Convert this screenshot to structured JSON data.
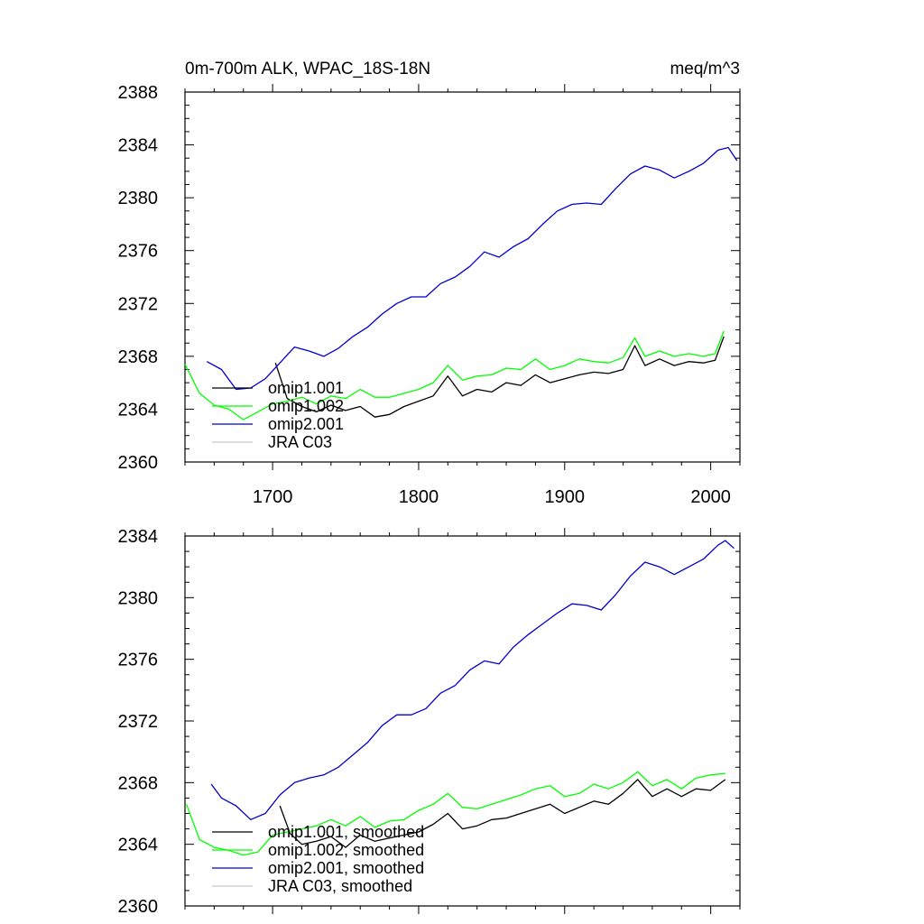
{
  "chart_data": [
    {
      "type": "line",
      "title": "0m-700m ALK, WPAC_18S-18N",
      "units": "meq/m^3",
      "xlabel": "",
      "ylabel": "",
      "xlim": [
        1640,
        2020
      ],
      "ylim": [
        2360,
        2388
      ],
      "x_ticks": [
        1700,
        1800,
        1900,
        2000
      ],
      "x_tick_labels": [
        "1700",
        "1800",
        "1900",
        "2000"
      ],
      "y_ticks": [
        2360,
        2364,
        2368,
        2372,
        2376,
        2380,
        2384,
        2388
      ],
      "y_tick_labels": [
        "2360",
        "2364",
        "2368",
        "2372",
        "2376",
        "2380",
        "2384",
        "2388"
      ],
      "legend_position": "bottom-left",
      "series": [
        {
          "name": "omip1.001",
          "color": "#000000",
          "x": [
            1702,
            1710,
            1720,
            1730,
            1740,
            1750,
            1760,
            1770,
            1780,
            1790,
            1800,
            1810,
            1820,
            1830,
            1840,
            1850,
            1860,
            1870,
            1880,
            1890,
            1900,
            1910,
            1920,
            1930,
            1940,
            1948,
            1955,
            1965,
            1975,
            1985,
            1995,
            2003,
            2009
          ],
          "values": [
            2367.5,
            2364.8,
            2364.2,
            2363.8,
            2364.3,
            2363.9,
            2364.2,
            2363.4,
            2363.6,
            2364.2,
            2364.6,
            2365.0,
            2366.5,
            2365.0,
            2365.5,
            2365.3,
            2366.0,
            2365.8,
            2366.6,
            2366.0,
            2366.3,
            2366.6,
            2366.8,
            2366.7,
            2367.0,
            2368.8,
            2367.3,
            2367.8,
            2367.3,
            2367.6,
            2367.5,
            2367.7,
            2369.5
          ]
        },
        {
          "name": "omip1.002",
          "color": "#00ff00",
          "x": [
            1640,
            1650,
            1660,
            1670,
            1680,
            1690,
            1700,
            1710,
            1720,
            1730,
            1740,
            1750,
            1760,
            1770,
            1780,
            1790,
            1800,
            1810,
            1820,
            1830,
            1840,
            1850,
            1860,
            1870,
            1880,
            1890,
            1900,
            1910,
            1920,
            1930,
            1940,
            1948,
            1955,
            1965,
            1975,
            1985,
            1995,
            2003,
            2009
          ],
          "values": [
            2367.4,
            2365.2,
            2364.3,
            2364.0,
            2363.2,
            2363.8,
            2364.4,
            2364.6,
            2364.9,
            2364.4,
            2365.0,
            2364.8,
            2365.5,
            2364.9,
            2364.9,
            2365.2,
            2365.5,
            2366.0,
            2367.3,
            2366.2,
            2366.5,
            2366.6,
            2367.1,
            2367.0,
            2367.8,
            2367.0,
            2367.3,
            2367.8,
            2367.6,
            2367.5,
            2367.9,
            2369.4,
            2368.0,
            2368.4,
            2368.0,
            2368.2,
            2368.0,
            2368.2,
            2369.9
          ]
        },
        {
          "name": "omip2.001",
          "color": "#0000cc",
          "x": [
            1655,
            1665,
            1675,
            1685,
            1695,
            1705,
            1715,
            1725,
            1735,
            1745,
            1755,
            1765,
            1775,
            1785,
            1795,
            1805,
            1815,
            1825,
            1835,
            1845,
            1855,
            1865,
            1875,
            1885,
            1895,
            1905,
            1915,
            1925,
            1935,
            1945,
            1955,
            1965,
            1975,
            1985,
            1995,
            2005,
            2012,
            2018
          ],
          "values": [
            2367.6,
            2367.0,
            2365.5,
            2365.6,
            2366.3,
            2367.5,
            2368.7,
            2368.4,
            2368.0,
            2368.6,
            2369.5,
            2370.2,
            2371.2,
            2372.0,
            2372.5,
            2372.5,
            2373.5,
            2374.0,
            2374.8,
            2375.9,
            2375.5,
            2376.3,
            2376.9,
            2378.0,
            2379.0,
            2379.5,
            2379.6,
            2379.5,
            2380.7,
            2381.8,
            2382.4,
            2382.1,
            2381.5,
            2382.0,
            2382.6,
            2383.6,
            2383.8,
            2382.8
          ]
        },
        {
          "name": "JRA C03",
          "color": "#c8c8c8",
          "x": [],
          "values": []
        }
      ]
    },
    {
      "type": "line",
      "title": "",
      "xlabel": "",
      "ylabel": "",
      "xlim": [
        1640,
        2020
      ],
      "ylim": [
        2360,
        2384
      ],
      "x_ticks": [
        1700,
        1800,
        1900,
        2000
      ],
      "y_ticks": [
        2360,
        2364,
        2368,
        2372,
        2376,
        2380,
        2384
      ],
      "y_tick_labels": [
        "2360",
        "2364",
        "2368",
        "2372",
        "2376",
        "2380",
        "2384"
      ],
      "legend_position": "bottom-left",
      "series": [
        {
          "name": "omip1.001, smoothed",
          "color": "#000000",
          "x": [
            1705,
            1712,
            1720,
            1730,
            1740,
            1750,
            1760,
            1770,
            1780,
            1790,
            1800,
            1810,
            1820,
            1830,
            1840,
            1850,
            1860,
            1870,
            1880,
            1890,
            1900,
            1910,
            1920,
            1930,
            1940,
            1950,
            1960,
            1970,
            1980,
            1990,
            2000,
            2010
          ],
          "values": [
            2366.5,
            2364.7,
            2364.0,
            2364.2,
            2364.5,
            2363.8,
            2364.6,
            2364.2,
            2364.4,
            2364.6,
            2364.8,
            2365.3,
            2366.0,
            2365.0,
            2365.2,
            2365.6,
            2365.7,
            2366.0,
            2366.3,
            2366.6,
            2366.0,
            2366.4,
            2366.8,
            2366.6,
            2367.3,
            2368.2,
            2367.1,
            2367.6,
            2367.1,
            2367.6,
            2367.5,
            2368.2
          ]
        },
        {
          "name": "omip1.002, smoothed",
          "color": "#00ff00",
          "x": [
            1641,
            1650,
            1660,
            1670,
            1680,
            1690,
            1700,
            1710,
            1720,
            1730,
            1740,
            1750,
            1760,
            1770,
            1780,
            1790,
            1800,
            1810,
            1820,
            1830,
            1840,
            1850,
            1860,
            1870,
            1880,
            1890,
            1900,
            1910,
            1920,
            1930,
            1940,
            1950,
            1960,
            1970,
            1980,
            1990,
            2000,
            2010
          ],
          "values": [
            2366.6,
            2364.3,
            2363.8,
            2363.6,
            2363.3,
            2363.5,
            2364.6,
            2364.8,
            2365.0,
            2365.2,
            2365.6,
            2365.2,
            2365.8,
            2365.1,
            2365.5,
            2365.6,
            2366.2,
            2366.6,
            2367.3,
            2366.4,
            2366.3,
            2366.6,
            2366.9,
            2367.2,
            2367.6,
            2367.8,
            2367.1,
            2367.3,
            2367.9,
            2367.6,
            2368.0,
            2368.7,
            2367.8,
            2368.2,
            2367.6,
            2368.3,
            2368.5,
            2368.6
          ]
        },
        {
          "name": "omip2.001, smoothed",
          "color": "#0000cc",
          "x": [
            1658,
            1665,
            1675,
            1685,
            1695,
            1705,
            1715,
            1725,
            1735,
            1745,
            1755,
            1765,
            1775,
            1785,
            1795,
            1805,
            1815,
            1825,
            1835,
            1845,
            1855,
            1865,
            1875,
            1885,
            1895,
            1905,
            1915,
            1925,
            1935,
            1945,
            1955,
            1965,
            1975,
            1985,
            1995,
            2005,
            2010,
            2016
          ],
          "values": [
            2367.9,
            2367.0,
            2366.5,
            2365.6,
            2366.0,
            2367.2,
            2368.0,
            2368.3,
            2368.5,
            2369.0,
            2369.8,
            2370.6,
            2371.7,
            2372.4,
            2372.4,
            2372.8,
            2373.8,
            2374.3,
            2375.3,
            2375.9,
            2375.7,
            2376.8,
            2377.6,
            2378.3,
            2379.0,
            2379.6,
            2379.5,
            2379.2,
            2380.2,
            2381.4,
            2382.3,
            2382.0,
            2381.5,
            2382.0,
            2382.5,
            2383.4,
            2383.7,
            2383.2
          ]
        },
        {
          "name": "JRA C03, smoothed",
          "color": "#c8c8c8",
          "x": [],
          "values": []
        }
      ]
    }
  ]
}
